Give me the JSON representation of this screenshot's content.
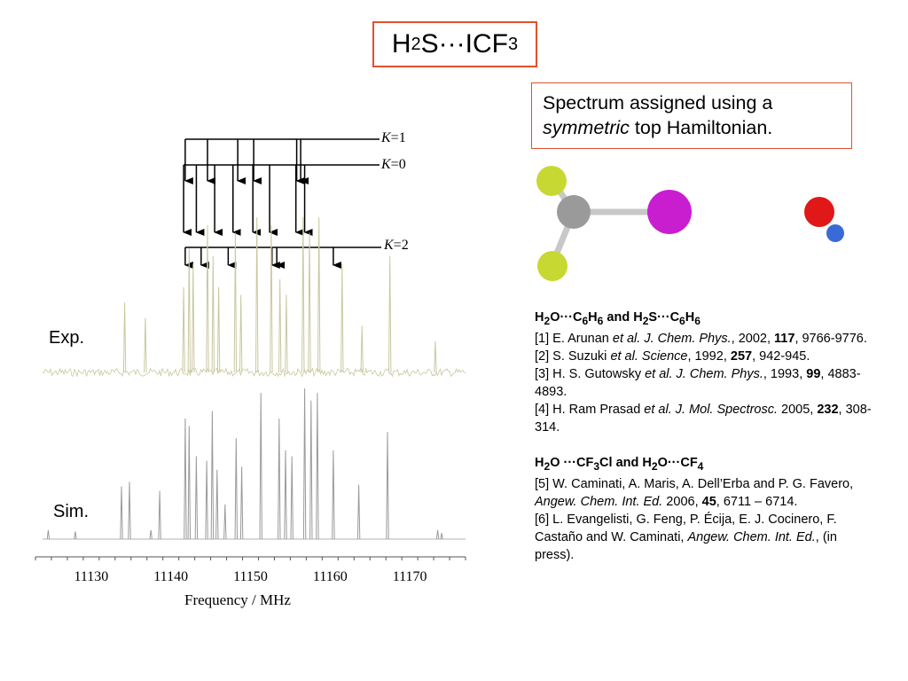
{
  "header": {
    "title_main": "H",
    "title_sub1": "2",
    "title_mid": "S···ICF",
    "title_sub2": "3"
  },
  "note": {
    "line1": "Spectrum assigned using a",
    "italic": "symmetric",
    "rest": " top Hamiltonian."
  },
  "molecule": {
    "colors": {
      "yellow": "#c8d832",
      "gray": "#9a9a9a",
      "magenta": "#c81ed0",
      "red": "#e01818",
      "blue": "#3a6ad8"
    }
  },
  "references": {
    "group1": {
      "p1": "H",
      "s1": "2",
      "p2": "O···C",
      "s2": "6",
      "p3": "H",
      "s3": "6",
      "p4": " and H",
      "s4": "2",
      "p5": "S···C",
      "s5": "6",
      "p6": "H",
      "s6": "6"
    },
    "r1": {
      "a": "[1] E. Arunan ",
      "b": "et al. J. Chem. Phys.",
      "c": ", 2002, ",
      "d": "117",
      "e": ", 9766-9776."
    },
    "r2": {
      "a": "[2] S. Suzuki ",
      "b": "et al. Science",
      "c": ", 1992, ",
      "d": "257",
      "e": ", 942-945."
    },
    "r3": {
      "a": "[3] H. S. Gutowsky ",
      "b": "et al. J. Chem. Phys.",
      "c": ", 1993, ",
      "d": "99",
      "e": ", 4883-4893."
    },
    "r4": {
      "a": "[4] H. Ram Prasad ",
      "b": "et al. J. Mol. Spectrosc.",
      "c": " 2005, ",
      "d": "232",
      "e": ", 308-314."
    },
    "group2": {
      "p1": "H",
      "s1": "2",
      "p2": "O ···CF",
      "s2": "3",
      "p3": "Cl and H",
      "s3": "2",
      "p4": "O···CF",
      "s4": "4"
    },
    "r5": {
      "a": "[5] W. Caminati, A. Maris, A. Dell’Erba and P. G. Favero, ",
      "b": "Angew. Chem. Int. Ed.",
      "c": " 2006, ",
      "d": "45",
      "e": ", 6711 – 6714."
    },
    "r6": {
      "a": "[6] L. Evangelisti, G. Feng, P. Écija, E. J. Cocinero, F. Castaño and W. Caminati, ",
      "b": "Angew. Chem. Int. Ed.",
      "c": ", (in press).",
      "d": "",
      "e": ""
    }
  },
  "chart_data": {
    "type": "line",
    "xlabel": "Frequency / MHz",
    "xlim": [
      11123,
      11177
    ],
    "ticks": [
      11130,
      11140,
      11150,
      11160,
      11170
    ],
    "tick_labels": [
      "11130",
      "11140",
      "11150",
      "11160",
      "11170"
    ],
    "series": [
      {
        "name": "Exp.",
        "color": "#c8c8a0",
        "peaks": [
          {
            "x": 11134.2,
            "h": 0.45
          },
          {
            "x": 11136.8,
            "h": 0.35
          },
          {
            "x": 11141.6,
            "h": 0.55
          },
          {
            "x": 11142.3,
            "h": 0.8
          },
          {
            "x": 11142.8,
            "h": 0.7
          },
          {
            "x": 11144.6,
            "h": 0.95
          },
          {
            "x": 11145.3,
            "h": 0.75
          },
          {
            "x": 11146.0,
            "h": 0.55
          },
          {
            "x": 11148.1,
            "h": 0.9
          },
          {
            "x": 11148.8,
            "h": 0.5
          },
          {
            "x": 11150.8,
            "h": 1.0
          },
          {
            "x": 11152.6,
            "h": 0.95
          },
          {
            "x": 11153.7,
            "h": 0.6
          },
          {
            "x": 11154.5,
            "h": 0.5
          },
          {
            "x": 11156.6,
            "h": 1.0
          },
          {
            "x": 11157.4,
            "h": 0.9
          },
          {
            "x": 11158.6,
            "h": 1.0
          },
          {
            "x": 11161.5,
            "h": 0.7
          },
          {
            "x": 11164.0,
            "h": 0.3
          },
          {
            "x": 11167.5,
            "h": 0.75
          },
          {
            "x": 11173.2,
            "h": 0.2
          }
        ]
      },
      {
        "name": "Sim.",
        "color": "#9a9a9a",
        "peaks": [
          {
            "x": 11124.6,
            "h": 0.06
          },
          {
            "x": 11128.0,
            "h": 0.05
          },
          {
            "x": 11133.8,
            "h": 0.35
          },
          {
            "x": 11134.8,
            "h": 0.38
          },
          {
            "x": 11137.5,
            "h": 0.06
          },
          {
            "x": 11138.6,
            "h": 0.32
          },
          {
            "x": 11141.8,
            "h": 0.8
          },
          {
            "x": 11142.3,
            "h": 0.75
          },
          {
            "x": 11143.2,
            "h": 0.55
          },
          {
            "x": 11144.5,
            "h": 0.52
          },
          {
            "x": 11145.2,
            "h": 0.85
          },
          {
            "x": 11145.8,
            "h": 0.46
          },
          {
            "x": 11146.8,
            "h": 0.23
          },
          {
            "x": 11148.2,
            "h": 0.67
          },
          {
            "x": 11148.9,
            "h": 0.48
          },
          {
            "x": 11151.3,
            "h": 0.97
          },
          {
            "x": 11153.6,
            "h": 0.8
          },
          {
            "x": 11154.4,
            "h": 0.59
          },
          {
            "x": 11155.2,
            "h": 0.55
          },
          {
            "x": 11156.8,
            "h": 1.0
          },
          {
            "x": 11157.6,
            "h": 0.92
          },
          {
            "x": 11158.4,
            "h": 0.97
          },
          {
            "x": 11160.4,
            "h": 0.59
          },
          {
            "x": 11163.6,
            "h": 0.36
          },
          {
            "x": 11167.2,
            "h": 0.71
          },
          {
            "x": 11173.5,
            "h": 0.06
          },
          {
            "x": 11174.0,
            "h": 0.04
          }
        ]
      }
    ],
    "assignments": [
      {
        "label": "K",
        "value": "=1",
        "lines": [
          11141.8,
          11144.6,
          11148.4,
          11150.4,
          11155.8,
          11156.3
        ]
      },
      {
        "label": "K",
        "value": "=0",
        "lines": [
          11141.6,
          11143.2,
          11145.5,
          11147.8,
          11150.3,
          11152.4,
          11155.7,
          11156.8
        ]
      },
      {
        "label": "K",
        "value": "=2",
        "lines": [
          11141.8,
          11143.8,
          11147.2,
          11152.7,
          11153.3,
          11160.4
        ]
      }
    ]
  }
}
